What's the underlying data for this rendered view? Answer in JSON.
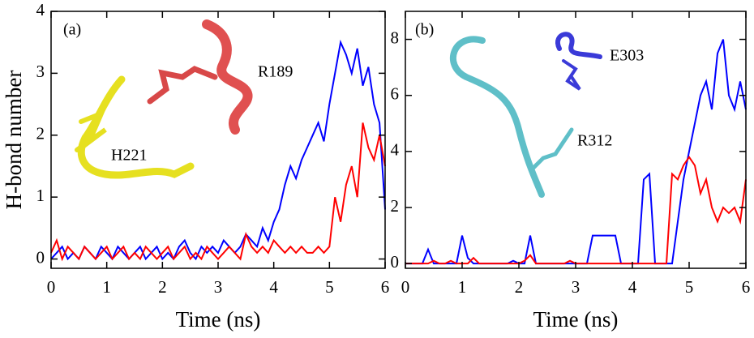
{
  "chart_data": [
    {
      "type": "line",
      "ylabel": "H-bond number",
      "xlabel": "Time (ns)",
      "annotations": [
        "(a)",
        "R189",
        "H221"
      ],
      "x": [
        0,
        0.1,
        0.2,
        0.3,
        0.4,
        0.5,
        0.6,
        0.7,
        0.8,
        0.9,
        1,
        1.1,
        1.2,
        1.3,
        1.4,
        1.5,
        1.6,
        1.7,
        1.8,
        1.9,
        2,
        2.1,
        2.2,
        2.3,
        2.4,
        2.5,
        2.6,
        2.7,
        2.8,
        2.9,
        3,
        3.1,
        3.2,
        3.3,
        3.4,
        3.5,
        3.6,
        3.7,
        3.8,
        3.9,
        4,
        4.1,
        4.2,
        4.3,
        4.4,
        4.5,
        4.6,
        4.7,
        4.8,
        4.9,
        5,
        5.1,
        5.2,
        5.3,
        5.4,
        5.5,
        5.6,
        5.7,
        5.8,
        5.9,
        6
      ],
      "series": [
        {
          "color": "#0000ff",
          "values": [
            0,
            0.1,
            0.2,
            0,
            0.1,
            0,
            0.2,
            0.1,
            0,
            0.2,
            0.1,
            0,
            0.2,
            0.1,
            0,
            0.1,
            0.2,
            0,
            0.1,
            0.2,
            0,
            0.1,
            0,
            0.2,
            0.3,
            0.1,
            0,
            0.2,
            0.1,
            0.2,
            0.1,
            0.3,
            0.2,
            0.1,
            0.2,
            0.4,
            0.3,
            0.2,
            0.5,
            0.3,
            0.6,
            0.8,
            1.2,
            1.5,
            1.3,
            1.6,
            1.8,
            2.0,
            2.2,
            1.9,
            2.5,
            3.0,
            3.5,
            3.3,
            3.0,
            3.4,
            2.8,
            3.1,
            2.5,
            2.2,
            0.8
          ]
        },
        {
          "color": "#ff0000",
          "values": [
            0.1,
            0.3,
            0,
            0.2,
            0.1,
            0,
            0.2,
            0.1,
            0,
            0.1,
            0.2,
            0,
            0.1,
            0.2,
            0,
            0.1,
            0,
            0.2,
            0.1,
            0,
            0.1,
            0.2,
            0,
            0.1,
            0.2,
            0,
            0.1,
            0,
            0.2,
            0.1,
            0,
            0.1,
            0.2,
            0.1,
            0,
            0.4,
            0.2,
            0.1,
            0.2,
            0.1,
            0.3,
            0.2,
            0.1,
            0.2,
            0.1,
            0.2,
            0.1,
            0.1,
            0.2,
            0.1,
            0.2,
            1.0,
            0.6,
            1.2,
            1.5,
            1.0,
            2.2,
            1.8,
            1.6,
            2.0,
            1.5
          ]
        }
      ],
      "xlim": [
        0,
        6
      ],
      "xticks": [
        0,
        1,
        2,
        3,
        4,
        5,
        6
      ],
      "ylim": [
        -0.15,
        4
      ],
      "yticks": [
        0,
        1,
        2,
        3,
        4
      ]
    },
    {
      "type": "line",
      "xlabel": "Time (ns)",
      "annotations": [
        "(b)",
        "E303",
        "R312"
      ],
      "x": [
        0,
        0.1,
        0.2,
        0.3,
        0.4,
        0.5,
        0.6,
        0.7,
        0.8,
        0.9,
        1,
        1.1,
        1.2,
        1.3,
        1.4,
        1.5,
        1.6,
        1.7,
        1.8,
        1.9,
        2,
        2.1,
        2.2,
        2.3,
        2.4,
        2.5,
        2.6,
        2.7,
        2.8,
        2.9,
        3,
        3.1,
        3.2,
        3.3,
        3.4,
        3.5,
        3.6,
        3.7,
        3.8,
        3.9,
        4,
        4.1,
        4.2,
        4.3,
        4.4,
        4.5,
        4.6,
        4.7,
        4.8,
        4.9,
        5,
        5.1,
        5.2,
        5.3,
        5.4,
        5.5,
        5.6,
        5.7,
        5.8,
        5.9,
        6
      ],
      "series": [
        {
          "color": "#0000ff",
          "values": [
            0,
            0,
            0,
            0,
            0.5,
            0,
            0,
            0,
            0,
            0,
            1.0,
            0.2,
            0,
            0,
            0,
            0,
            0,
            0,
            0,
            0.1,
            0,
            0,
            1.0,
            0,
            0,
            0,
            0,
            0,
            0,
            0,
            0,
            0,
            0,
            1.0,
            1.0,
            1.0,
            1.0,
            1.0,
            0,
            0,
            0,
            0,
            3.0,
            3.2,
            0,
            0,
            0,
            0,
            1.5,
            3.0,
            4.0,
            5.0,
            6.0,
            6.5,
            5.5,
            7.5,
            8.0,
            6.0,
            5.5,
            6.5,
            5.5
          ]
        },
        {
          "color": "#ff0000",
          "values": [
            0,
            0,
            0,
            0,
            0,
            0.1,
            0,
            0,
            0.1,
            0,
            0,
            0,
            0.2,
            0,
            0,
            0,
            0,
            0,
            0,
            0,
            0,
            0.1,
            0.3,
            0,
            0,
            0,
            0,
            0,
            0,
            0.1,
            0,
            0,
            0,
            0,
            0,
            0,
            0,
            0,
            0,
            0,
            0,
            0,
            0,
            0,
            0,
            0,
            0,
            3.2,
            3.0,
            3.5,
            3.8,
            3.5,
            2.5,
            3.0,
            2.0,
            1.5,
            2.0,
            1.8,
            2.0,
            1.5,
            3.0
          ]
        }
      ],
      "xlim": [
        0,
        6
      ],
      "xticks": [
        0,
        1,
        2,
        3,
        4,
        5,
        6
      ],
      "ylim": [
        -0.17,
        9
      ],
      "yticks": [
        0,
        2,
        4,
        6,
        8
      ]
    }
  ]
}
